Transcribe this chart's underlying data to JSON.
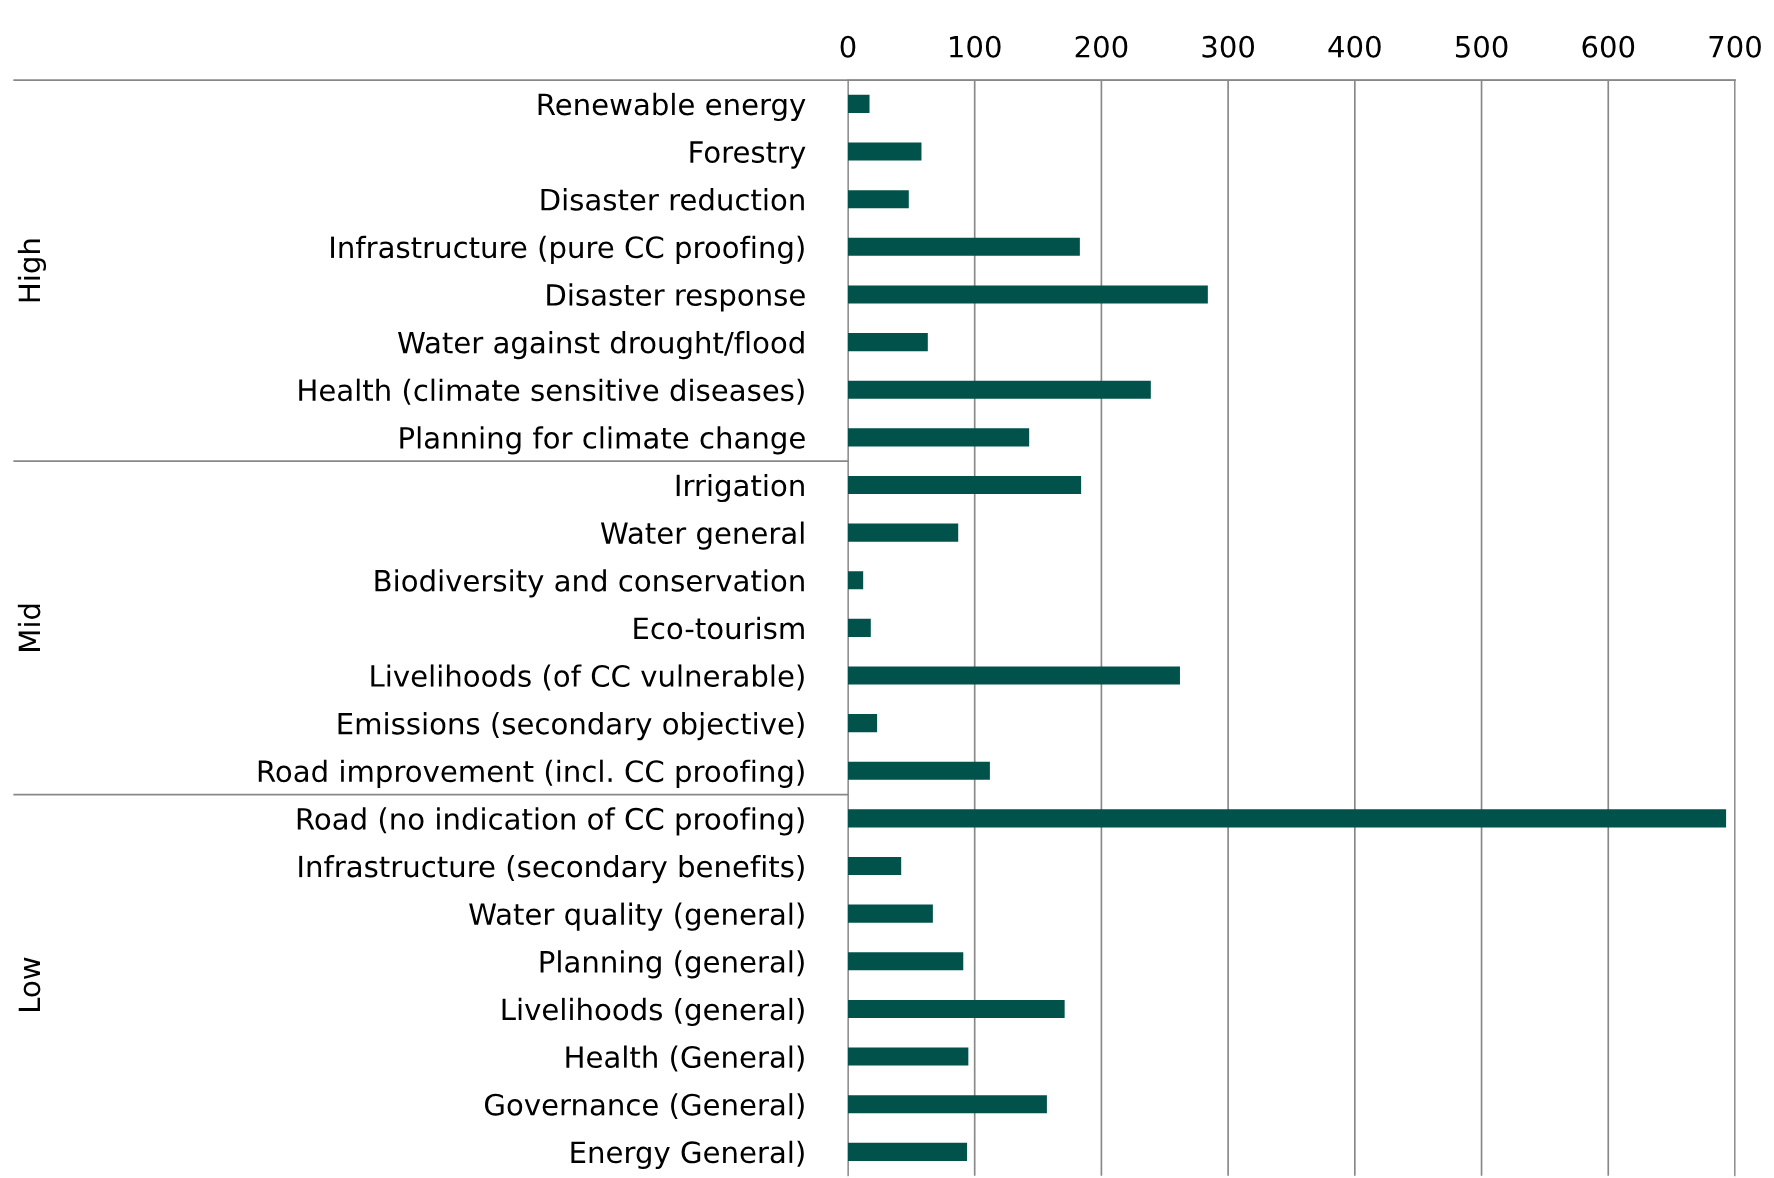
{
  "chart_data": {
    "type": "bar",
    "orientation": "horizontal",
    "categories": [
      "Renewable energy",
      "Forestry",
      "Disaster reduction",
      "Infrastructure (pure CC proofing)",
      "Disaster response",
      "Water against drought/flood",
      "Health (climate sensitive diseases)",
      "Planning for climate change",
      "Irrigation",
      "Water general",
      "Biodiversity and conservation",
      "Eco-tourism",
      "Livelihoods (of CC vulnerable)",
      "Emissions (secondary objective)",
      "Road improvement (incl. CC proofing)",
      "Road (no indication of CC proofing)",
      "Infrastructure (secondary benefits)",
      "Water quality (general)",
      "Planning (general)",
      "Livelihoods (general)",
      "Health (General)",
      "Governance (General)",
      "Energy General)"
    ],
    "values": [
      17,
      58,
      48,
      183,
      284,
      63,
      239,
      143,
      184,
      87,
      12,
      18,
      262,
      23,
      112,
      693,
      42,
      67,
      91,
      171,
      95,
      157,
      94
    ],
    "color": "#00524a",
    "xlim": [
      0,
      700
    ],
    "xticks": [
      0,
      100,
      200,
      300,
      400,
      500,
      600,
      700
    ],
    "grid": "x",
    "annotations": [
      "High",
      "Mid",
      "Low"
    ]
  }
}
